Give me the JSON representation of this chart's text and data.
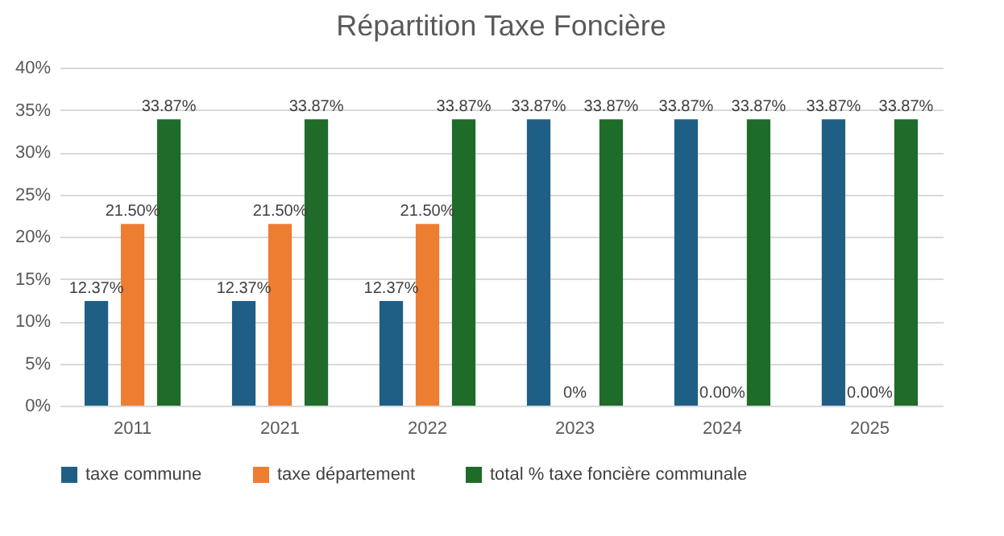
{
  "chart_data": {
    "type": "bar",
    "title": "Répartition Taxe Foncière",
    "categories": [
      "2011",
      "2021",
      "2022",
      "2023",
      "2024",
      "2025"
    ],
    "series": [
      {
        "name": "taxe commune",
        "color": "#1f5f86",
        "values": [
          12.37,
          12.37,
          12.37,
          33.87,
          33.87,
          33.87
        ],
        "value_labels": [
          "12.37%",
          "12.37%",
          "12.37%",
          "33.87%",
          "33.87%",
          "33.87%"
        ]
      },
      {
        "name": "taxe département",
        "color": "#ed7d31",
        "values": [
          21.5,
          21.5,
          21.5,
          0,
          0,
          0
        ],
        "value_labels": [
          "21.50%",
          "21.50%",
          "21.50%",
          "0%",
          "0.00%",
          "0.00%"
        ]
      },
      {
        "name": "total % taxe foncière communale",
        "color": "#1e6b2a",
        "values": [
          33.87,
          33.87,
          33.87,
          33.87,
          33.87,
          33.87
        ],
        "value_labels": [
          "33.87%",
          "33.87%",
          "33.87%",
          "33.87%",
          "33.87%",
          "33.87%"
        ]
      }
    ],
    "ylim": [
      0,
      40
    ],
    "yticks": [
      {
        "value": 0,
        "label": "0%"
      },
      {
        "value": 5,
        "label": "5%"
      },
      {
        "value": 10,
        "label": "10%"
      },
      {
        "value": 15,
        "label": "15%"
      },
      {
        "value": 20,
        "label": "20%"
      },
      {
        "value": 25,
        "label": "25%"
      },
      {
        "value": 30,
        "label": "30%"
      },
      {
        "value": 35,
        "label": "35%"
      },
      {
        "value": 40,
        "label": "40%"
      }
    ],
    "grid": "y",
    "legend": "bottom"
  }
}
